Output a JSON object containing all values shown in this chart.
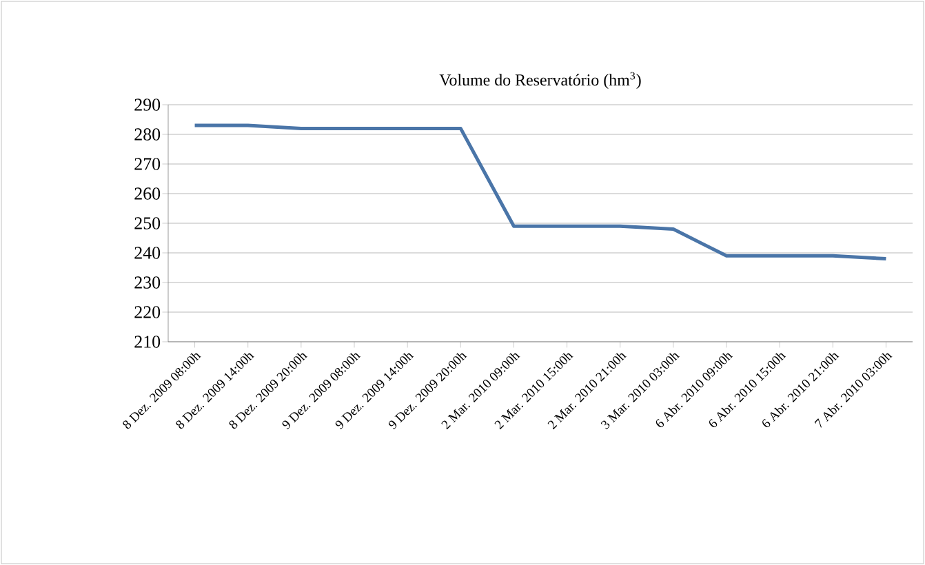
{
  "chart_data": {
    "type": "line",
    "title": "Volume do Reservatório (hm$^{3}$)",
    "categories": [
      "8 Dez. 2009 08:00h",
      "8 Dez. 2009 14:00h",
      "8 Dez. 2009 20:00h",
      "9 Dez. 2009 08:00h",
      "9 Dez. 2009 14:00h",
      "9 Dez. 2009 20:00h",
      "2 Mar. 2010 09:00h",
      "2 Mar. 2010 15:00h",
      "2 Mar. 2010 21:00h",
      "3 Mar. 2010 03:00h",
      "6 Abr. 2010 09:00h",
      "6 Abr. 2010 15:00h",
      "6 Abr. 2010 21:00h",
      "7 Abr. 2010 03:00h"
    ],
    "series": [
      {
        "color": "#4a75a8",
        "values": [
          283,
          283,
          282,
          282,
          282,
          282,
          249,
          249,
          249,
          248,
          239,
          239,
          239,
          238
        ]
      }
    ],
    "ylim": [
      210,
      290
    ],
    "yticks": [
      210,
      220,
      230,
      240,
      250,
      260,
      270,
      280,
      290
    ],
    "grid": "y",
    "marker": "none",
    "line_style": "solid"
  }
}
